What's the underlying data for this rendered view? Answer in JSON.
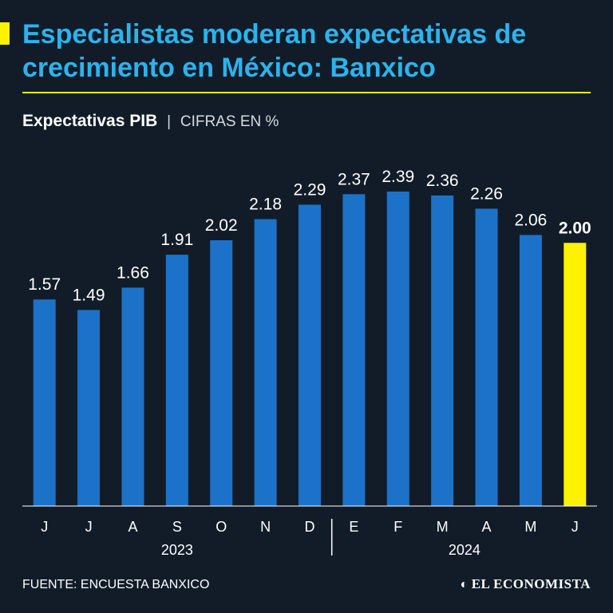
{
  "header": {
    "title": "Especialistas moderan expectativas de crecimiento en México: Banxico",
    "subtitle": "Expectativas PIB",
    "separator": "|",
    "units": "CIFRAS EN %"
  },
  "chart_data": {
    "type": "bar",
    "title": "Expectativas PIB",
    "ylabel": "CIFRAS EN %",
    "categories": [
      "J",
      "J",
      "A",
      "S",
      "O",
      "N",
      "D",
      "E",
      "F",
      "M",
      "A",
      "M",
      "J"
    ],
    "value_labels": [
      "1.57",
      "1.49",
      "1.66",
      "1.91",
      "2.02",
      "2.18",
      "2.29",
      "2.37",
      "2.39",
      "2.36",
      "2.26",
      "2.06",
      "2.00"
    ],
    "values": [
      1.57,
      1.49,
      1.66,
      1.91,
      2.02,
      2.18,
      2.29,
      2.37,
      2.39,
      2.36,
      2.26,
      2.06,
      2.0
    ],
    "highlight_index": 12,
    "year_groups": [
      {
        "label": "2023",
        "start": 0,
        "end": 6
      },
      {
        "label": "2024",
        "start": 7,
        "end": 12
      }
    ],
    "ylim": [
      0,
      2.6
    ],
    "colors": {
      "bar": "#1c72c8",
      "highlight": "#fff200",
      "label": "#ffffff",
      "axis": "#ffffff"
    }
  },
  "footer": {
    "source": "FUENTE: ENCUESTA BANXICO",
    "brand": "EL ECONOMISTA",
    "brand_icon": "e-logo-icon"
  }
}
